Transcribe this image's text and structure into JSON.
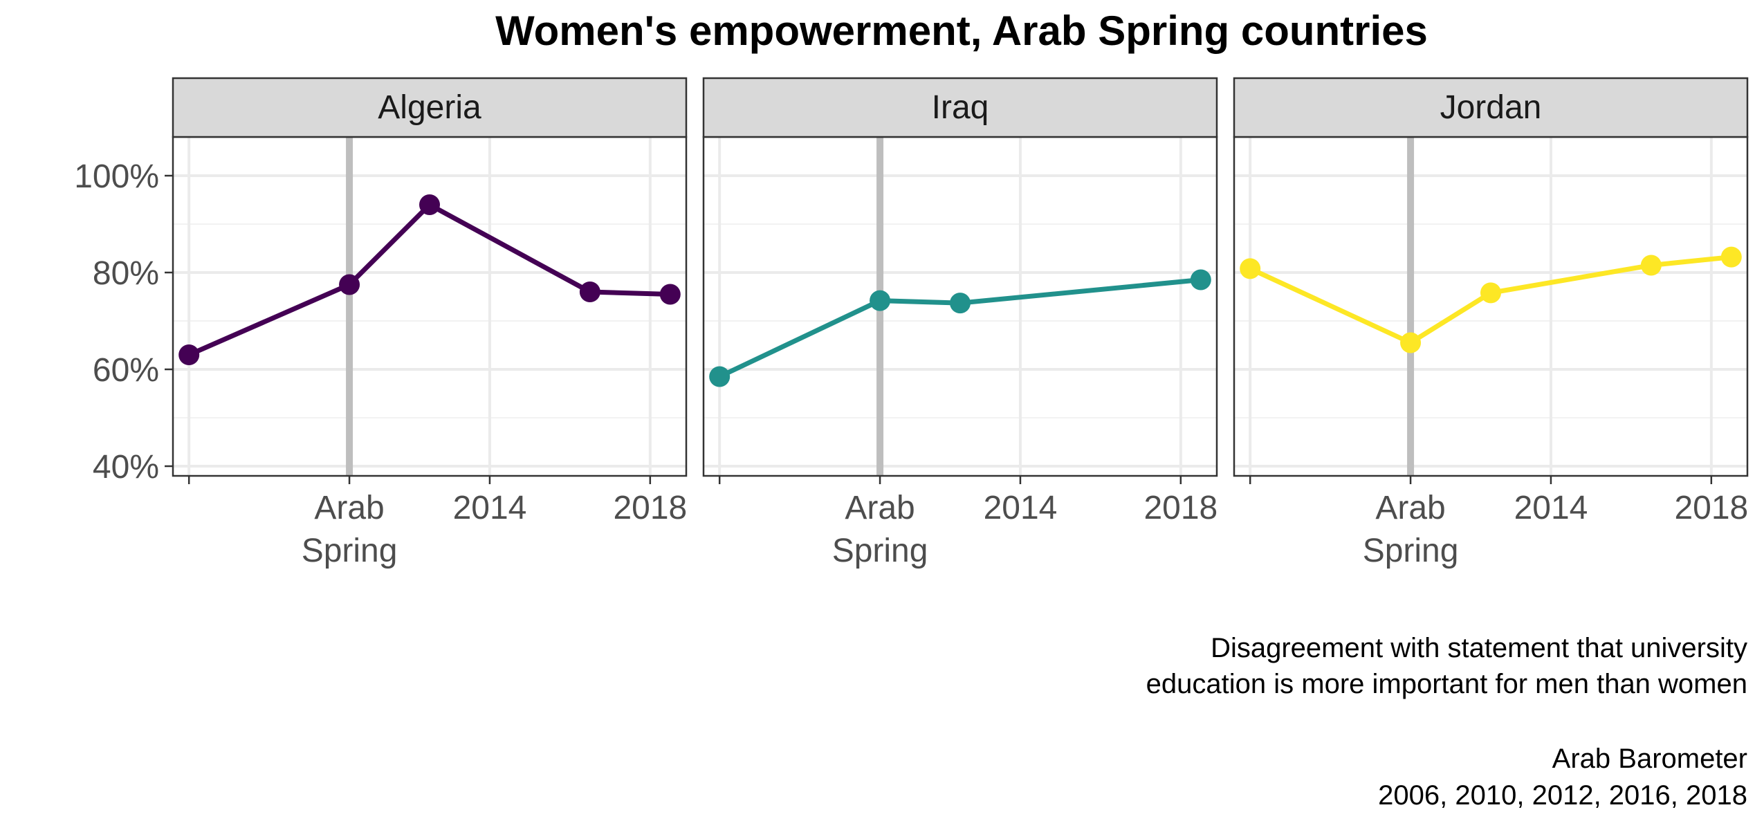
{
  "chart_data": {
    "type": "line",
    "title": "Women's empowerment, Arab Spring countries",
    "xlabel": "",
    "ylabel": "",
    "x_ticks": [
      {
        "value": 2010.5,
        "label": [
          "Arab",
          "Spring"
        ]
      },
      {
        "value": 2014,
        "label": [
          "2014"
        ]
      },
      {
        "value": 2018,
        "label": [
          "2018"
        ]
      }
    ],
    "reference_line": {
      "x": 2010.5,
      "color": "#bebebe"
    },
    "ylim": [
      0.38,
      1.08
    ],
    "y_ticks": [
      {
        "value": 0.4,
        "label": "40%"
      },
      {
        "value": 0.6,
        "label": "60%"
      },
      {
        "value": 0.8,
        "label": "80%"
      },
      {
        "value": 1.0,
        "label": "100%"
      }
    ],
    "grid": true,
    "panels": [
      {
        "name": "Algeria",
        "color": "#440154",
        "x": [
          2006.5,
          2010.5,
          2012.5,
          2016.5,
          2018.5
        ],
        "y": [
          0.63,
          0.775,
          0.94,
          0.76,
          0.755
        ]
      },
      {
        "name": "Iraq",
        "color": "#21918c",
        "x": [
          2006.5,
          2010.5,
          2012.5,
          2018.5
        ],
        "y": [
          0.585,
          0.742,
          0.737,
          0.785
        ]
      },
      {
        "name": "Jordan",
        "color": "#fde725",
        "x": [
          2006.5,
          2010.5,
          2012.5,
          2016.5,
          2018.5
        ],
        "y": [
          0.808,
          0.655,
          0.758,
          0.815,
          0.832
        ]
      }
    ],
    "caption": [
      "Disagreement with statement that university",
      "education is more important for men than women",
      "",
      "Arab Barometer",
      "2006, 2010, 2012, 2016, 2018"
    ]
  }
}
